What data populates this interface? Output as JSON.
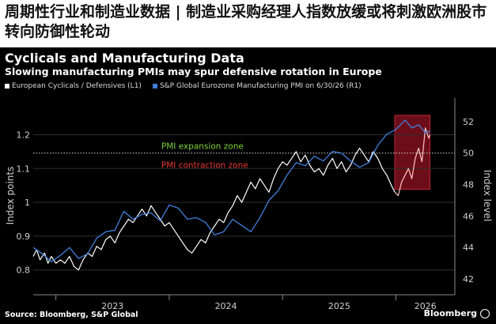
{
  "headline": "周期性行业和制造业数据 | 制造业采购经理人指数放缓或将刺激欧洲股市转向防御性轮动",
  "chart_data": {
    "type": "line",
    "title": "Cyclicals and Manufacturing Data",
    "subtitle": "Slowing manufacturing PMIs may spur defensive rotation in Europe",
    "y_left_label": "Index points",
    "y_right_label": "Index level",
    "ylim_left": [
      0.75,
      1.29
    ],
    "ylim_right": [
      41.5,
      53.1
    ],
    "xlim": [
      2022.8,
      2026.52
    ],
    "y_left_ticks": [
      0.8,
      0.9,
      1.0,
      1.1,
      1.2
    ],
    "y_right_ticks": [
      42,
      44,
      46,
      48,
      50,
      52
    ],
    "x_tick_labels": [
      "2023",
      "2024",
      "2025",
      "2026"
    ],
    "x_year_boundaries": [
      2023.0,
      2024.0,
      2025.0,
      2026.0
    ],
    "reference_line_right": 50,
    "annotations": [
      {
        "text": "PMI expansion zone",
        "color": "#7fd13b"
      },
      {
        "text": "PMI contraction zone",
        "color": "#e53935"
      }
    ],
    "highlight_box_x": [
      2025.99,
      2026.3
    ],
    "highlight_box_y_right": [
      47.7,
      52.4
    ],
    "series": [
      {
        "name": "European Cyclicals / Defensives (L1)",
        "axis": "left",
        "color": "#ffffff",
        "points": [
          [
            2022.8,
            0.84
          ],
          [
            2022.83,
            0.86
          ],
          [
            2022.86,
            0.83
          ],
          [
            2022.9,
            0.85
          ],
          [
            2022.93,
            0.82
          ],
          [
            2022.96,
            0.84
          ],
          [
            2023.0,
            0.82
          ],
          [
            2023.04,
            0.83
          ],
          [
            2023.08,
            0.82
          ],
          [
            2023.12,
            0.84
          ],
          [
            2023.16,
            0.81
          ],
          [
            2023.2,
            0.8
          ],
          [
            2023.24,
            0.83
          ],
          [
            2023.28,
            0.85
          ],
          [
            2023.32,
            0.84
          ],
          [
            2023.36,
            0.87
          ],
          [
            2023.4,
            0.86
          ],
          [
            2023.44,
            0.89
          ],
          [
            2023.48,
            0.9
          ],
          [
            2023.52,
            0.88
          ],
          [
            2023.56,
            0.91
          ],
          [
            2023.6,
            0.93
          ],
          [
            2023.64,
            0.95
          ],
          [
            2023.68,
            0.94
          ],
          [
            2023.72,
            0.96
          ],
          [
            2023.76,
            0.98
          ],
          [
            2023.8,
            0.96
          ],
          [
            2023.84,
            0.99
          ],
          [
            2023.88,
            0.97
          ],
          [
            2023.92,
            0.95
          ],
          [
            2023.96,
            0.93
          ],
          [
            2024.0,
            0.94
          ],
          [
            2024.04,
            0.92
          ],
          [
            2024.08,
            0.9
          ],
          [
            2024.12,
            0.88
          ],
          [
            2024.16,
            0.86
          ],
          [
            2024.2,
            0.85
          ],
          [
            2024.24,
            0.87
          ],
          [
            2024.28,
            0.89
          ],
          [
            2024.32,
            0.88
          ],
          [
            2024.36,
            0.91
          ],
          [
            2024.4,
            0.93
          ],
          [
            2024.44,
            0.95
          ],
          [
            2024.48,
            0.94
          ],
          [
            2024.52,
            0.97
          ],
          [
            2024.56,
            0.99
          ],
          [
            2024.6,
            1.02
          ],
          [
            2024.64,
            1.0
          ],
          [
            2024.68,
            1.03
          ],
          [
            2024.72,
            1.06
          ],
          [
            2024.76,
            1.04
          ],
          [
            2024.8,
            1.07
          ],
          [
            2024.84,
            1.05
          ],
          [
            2024.88,
            1.03
          ],
          [
            2024.92,
            1.07
          ],
          [
            2024.96,
            1.1
          ],
          [
            2025.0,
            1.12
          ],
          [
            2025.04,
            1.11
          ],
          [
            2025.08,
            1.13
          ],
          [
            2025.12,
            1.15
          ],
          [
            2025.16,
            1.12
          ],
          [
            2025.2,
            1.14
          ],
          [
            2025.24,
            1.11
          ],
          [
            2025.28,
            1.09
          ],
          [
            2025.32,
            1.1
          ],
          [
            2025.36,
            1.08
          ],
          [
            2025.4,
            1.11
          ],
          [
            2025.44,
            1.13
          ],
          [
            2025.48,
            1.1
          ],
          [
            2025.52,
            1.12
          ],
          [
            2025.56,
            1.09
          ],
          [
            2025.6,
            1.11
          ],
          [
            2025.64,
            1.14
          ],
          [
            2025.68,
            1.16
          ],
          [
            2025.72,
            1.14
          ],
          [
            2025.76,
            1.12
          ],
          [
            2025.8,
            1.15
          ],
          [
            2025.84,
            1.13
          ],
          [
            2025.88,
            1.1
          ],
          [
            2025.92,
            1.08
          ],
          [
            2025.96,
            1.05
          ],
          [
            2025.99,
            1.03
          ]
        ]
      },
      {
        "name": "European Cyclicals / Defensives (highlighted)",
        "axis": "left",
        "color": "#ffc4c4",
        "points": [
          [
            2025.99,
            1.03
          ],
          [
            2026.02,
            1.02
          ],
          [
            2026.05,
            1.06
          ],
          [
            2026.08,
            1.08
          ],
          [
            2026.11,
            1.1
          ],
          [
            2026.14,
            1.07
          ],
          [
            2026.17,
            1.13
          ],
          [
            2026.2,
            1.16
          ],
          [
            2026.23,
            1.12
          ],
          [
            2026.26,
            1.22
          ],
          [
            2026.29,
            1.19
          ],
          [
            2026.3,
            1.2
          ]
        ]
      },
      {
        "name": "S&P Global Eurozone Manufacturing PMI on 6/30/26 (R1)",
        "axis": "right",
        "color": "#3f7fd9",
        "points": [
          [
            2022.8,
            44.0
          ],
          [
            2022.88,
            43.6
          ],
          [
            2022.96,
            43.1
          ],
          [
            2023.04,
            43.5
          ],
          [
            2023.12,
            44.0
          ],
          [
            2023.2,
            43.3
          ],
          [
            2023.28,
            43.6
          ],
          [
            2023.36,
            44.6
          ],
          [
            2023.44,
            45.0
          ],
          [
            2023.52,
            45.1
          ],
          [
            2023.6,
            46.3
          ],
          [
            2023.68,
            45.8
          ],
          [
            2023.76,
            46.1
          ],
          [
            2023.84,
            46.2
          ],
          [
            2023.92,
            45.7
          ],
          [
            2024.0,
            46.7
          ],
          [
            2024.08,
            46.5
          ],
          [
            2024.16,
            45.8
          ],
          [
            2024.24,
            45.9
          ],
          [
            2024.32,
            45.6
          ],
          [
            2024.4,
            44.8
          ],
          [
            2024.48,
            45.0
          ],
          [
            2024.56,
            45.8
          ],
          [
            2024.64,
            45.4
          ],
          [
            2024.72,
            45.0
          ],
          [
            2024.8,
            45.9
          ],
          [
            2024.88,
            47.0
          ],
          [
            2024.96,
            47.6
          ],
          [
            2025.04,
            48.6
          ],
          [
            2025.12,
            49.4
          ],
          [
            2025.2,
            49.2
          ],
          [
            2025.28,
            49.8
          ],
          [
            2025.36,
            49.5
          ],
          [
            2025.44,
            50.1
          ],
          [
            2025.52,
            50.0
          ],
          [
            2025.6,
            49.5
          ],
          [
            2025.68,
            49.1
          ],
          [
            2025.76,
            49.4
          ],
          [
            2025.84,
            50.5
          ],
          [
            2025.92,
            51.2
          ],
          [
            2026.0,
            51.5
          ],
          [
            2026.08,
            52.1
          ],
          [
            2026.14,
            51.6
          ],
          [
            2026.2,
            51.8
          ],
          [
            2026.26,
            51.3
          ],
          [
            2026.3,
            51.4
          ]
        ]
      }
    ]
  },
  "footer": {
    "source": "Source: Bloomberg, S&P Global",
    "brand": "Bloomberg"
  }
}
